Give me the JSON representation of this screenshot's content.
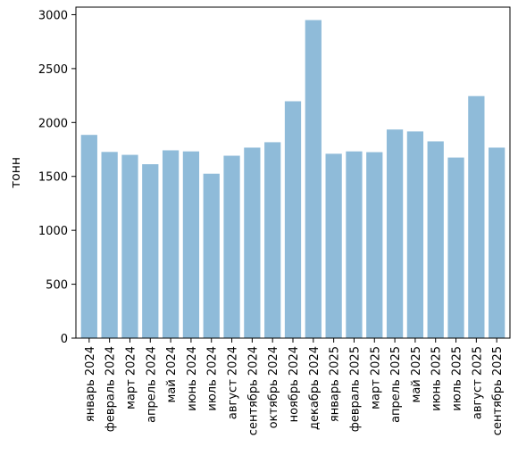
{
  "chart_data": {
    "type": "bar",
    "title": "",
    "xlabel": "",
    "ylabel": "тонн",
    "ylim": [
      0,
      3070
    ],
    "yticks": [
      0,
      500,
      1000,
      1500,
      2000,
      2500,
      3000
    ],
    "grid": false,
    "legend": "none",
    "bar_color": "#8fbbd9",
    "categories": [
      "январь 2024",
      "февраль 2024",
      "март 2024",
      "апрель 2024",
      "май 2024",
      "июнь 2024",
      "июль 2024",
      "август 2024",
      "сентябрь 2024",
      "октябрь 2024",
      "ноябрь 2024",
      "декабрь 2024",
      "январь 2025",
      "февраль 2025",
      "март 2025",
      "апрель 2025",
      "май 2025",
      "июнь 2025",
      "июль 2025",
      "август 2025",
      "сентябрь 2025"
    ],
    "values": [
      1885,
      1727,
      1700,
      1613,
      1742,
      1732,
      1525,
      1692,
      1767,
      1817,
      2197,
      2950,
      1710,
      1732,
      1725,
      1935,
      1917,
      1825,
      1675,
      2245,
      1767
    ]
  }
}
